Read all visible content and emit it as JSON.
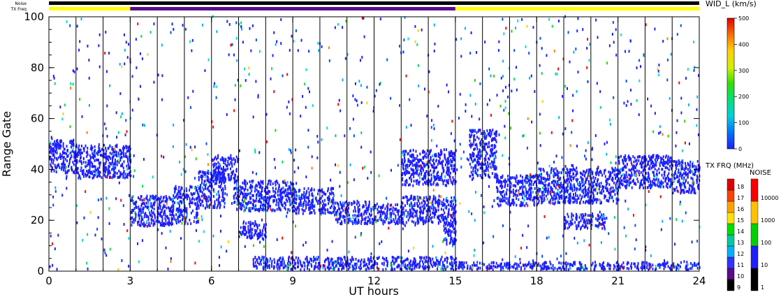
{
  "chart_data": {
    "type": "heatmap",
    "xlabel": "UT hours",
    "ylabel": "Range Gate",
    "xlim": [
      0,
      24
    ],
    "ylim": [
      0,
      100
    ],
    "x_ticks": [
      "0",
      "3",
      "6",
      "9",
      "12",
      "15",
      "18",
      "21",
      "24"
    ],
    "y_ticks": [
      "0",
      "20",
      "40",
      "60",
      "80",
      "100"
    ],
    "scan_lines_ut": [
      1,
      2,
      3,
      4,
      5,
      6,
      7,
      8,
      9,
      10,
      11,
      12,
      13,
      14,
      15,
      16,
      17,
      18,
      19,
      20,
      21,
      22,
      23
    ],
    "top_bars": {
      "noise_label": "Noise",
      "txfreq_label": "TX Freq",
      "noise_color": "#000000",
      "txfreq_segments": [
        {
          "start": 0,
          "end": 3,
          "color": "#ffff00"
        },
        {
          "start": 3,
          "end": 15,
          "color": "#5a0a8c"
        },
        {
          "start": 15,
          "end": 24,
          "color": "#ffff00"
        }
      ]
    },
    "colorbar_width": {
      "title": "WID_L (km/s)",
      "min": 0,
      "max": 500,
      "ticks": [
        "0",
        "100",
        "200",
        "300",
        "400",
        "500"
      ],
      "tick_values": [
        0,
        100,
        200,
        300,
        400,
        500
      ]
    },
    "colorbar_txfreq": {
      "title": "TX FRQ (MHz)",
      "labels": [
        "9",
        "10",
        "11",
        "12",
        "13",
        "14",
        "15",
        "16",
        "17",
        "18"
      ],
      "colors": [
        "#000000",
        "#5a0a8c",
        "#3333ff",
        "#00b0ff",
        "#00c8a0",
        "#00e000",
        "#ffe000",
        "#ffa000",
        "#ff4000",
        "#e00000"
      ]
    },
    "colorbar_noise": {
      "title": "NOISE",
      "labels": [
        "1",
        "10",
        "100",
        "1000",
        "10000"
      ],
      "colors": [
        "#000000",
        "#1e1eff",
        "#00d000",
        "#ffc000",
        "#ff0000"
      ]
    },
    "bands": [
      {
        "x0": 0.0,
        "x1": 1.0,
        "g0": 38,
        "g1": 51
      },
      {
        "x0": 1.0,
        "x1": 3.0,
        "g0": 36,
        "g1": 49
      },
      {
        "x0": 3.0,
        "x1": 4.5,
        "g0": 17,
        "g1": 29
      },
      {
        "x0": 4.5,
        "x1": 5.5,
        "g0": 18,
        "g1": 33
      },
      {
        "x0": 5.5,
        "x1": 6.5,
        "g0": 24,
        "g1": 39
      },
      {
        "x0": 6.0,
        "x1": 7.0,
        "g0": 35,
        "g1": 45
      },
      {
        "x0": 6.8,
        "x1": 9.0,
        "g0": 23,
        "g1": 35
      },
      {
        "x0": 9.0,
        "x1": 10.5,
        "g0": 22,
        "g1": 32
      },
      {
        "x0": 10.5,
        "x1": 12.0,
        "g0": 18,
        "g1": 27
      },
      {
        "x0": 12.0,
        "x1": 13.0,
        "g0": 18,
        "g1": 26
      },
      {
        "x0": 13.0,
        "x1": 15.0,
        "g0": 18,
        "g1": 29
      },
      {
        "x0": 13.0,
        "x1": 15.0,
        "g0": 33,
        "g1": 47
      },
      {
        "x0": 15.5,
        "x1": 16.5,
        "g0": 36,
        "g1": 55
      },
      {
        "x0": 16.5,
        "x1": 18.0,
        "g0": 25,
        "g1": 37
      },
      {
        "x0": 18.0,
        "x1": 21.0,
        "g0": 26,
        "g1": 40
      },
      {
        "x0": 21.0,
        "x1": 23.0,
        "g0": 32,
        "g1": 45
      },
      {
        "x0": 23.0,
        "x1": 24.0,
        "g0": 30,
        "g1": 43
      },
      {
        "x0": 7.5,
        "x1": 15.0,
        "g0": 0,
        "g1": 5
      },
      {
        "x0": 15.0,
        "x1": 24.0,
        "g0": 0,
        "g1": 3
      },
      {
        "x0": 14.5,
        "x1": 15.0,
        "g0": 10,
        "g1": 20
      },
      {
        "x0": 7.0,
        "x1": 8.0,
        "g0": 12,
        "g1": 19
      },
      {
        "x0": 19.0,
        "x1": 20.5,
        "g0": 16,
        "g1": 22
      }
    ]
  }
}
